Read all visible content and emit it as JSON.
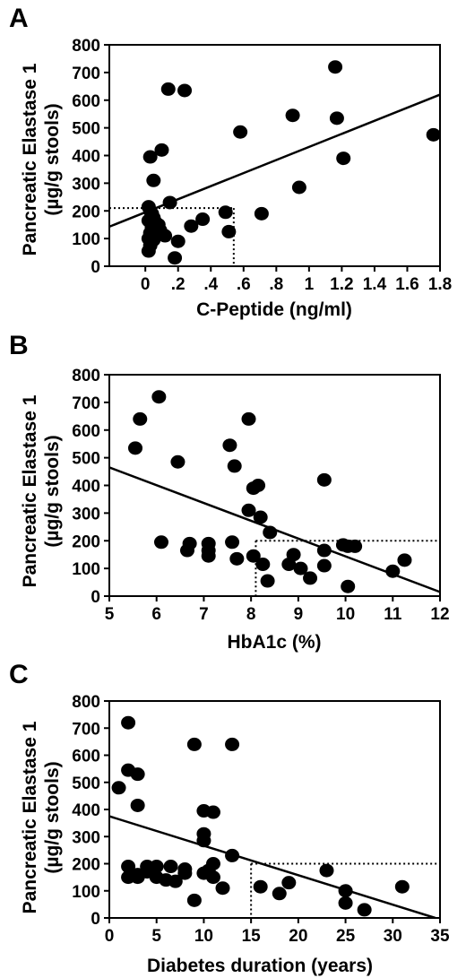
{
  "figure": {
    "y_axis_title_line1": "Pancreatic Elastase 1",
    "y_axis_title_line2": "(µg/g stools)"
  },
  "chart_data": [
    {
      "type": "scatter",
      "panel_label": "A",
      "xlabel": "C-Peptide (ng/ml)",
      "ylabel": "Pancreatic Elastase 1 (µg/g stools)",
      "xlim": [
        -0.22,
        1.8
      ],
      "ylim": [
        0,
        800
      ],
      "x_ticks": [
        0,
        0.2,
        0.4,
        0.6,
        0.8,
        1,
        1.2,
        1.4,
        1.6,
        1.8
      ],
      "x_tick_labels": [
        "0",
        ".2",
        ".4",
        ".6",
        ".8",
        "1",
        "1.2",
        "1.4",
        "1.6",
        "1.8"
      ],
      "y_ticks": [
        0,
        100,
        200,
        300,
        400,
        500,
        600,
        700,
        800
      ],
      "y_tick_labels": [
        "0",
        "100",
        "200",
        "300",
        "400",
        "500",
        "600",
        "700",
        "800"
      ],
      "points": [
        {
          "x": 0.03,
          "y": 395
        },
        {
          "x": 0.05,
          "y": 310
        },
        {
          "x": 0.1,
          "y": 420
        },
        {
          "x": 0.14,
          "y": 640
        },
        {
          "x": 0.24,
          "y": 635
        },
        {
          "x": 0.15,
          "y": 230
        },
        {
          "x": 0.02,
          "y": 215
        },
        {
          "x": 0.03,
          "y": 200
        },
        {
          "x": 0.04,
          "y": 190
        },
        {
          "x": 0.05,
          "y": 175
        },
        {
          "x": 0.02,
          "y": 165
        },
        {
          "x": 0.06,
          "y": 160
        },
        {
          "x": 0.08,
          "y": 150
        },
        {
          "x": 0.04,
          "y": 140
        },
        {
          "x": 0.09,
          "y": 130
        },
        {
          "x": 0.03,
          "y": 120
        },
        {
          "x": 0.07,
          "y": 115
        },
        {
          "x": 0.12,
          "y": 110
        },
        {
          "x": 0.02,
          "y": 100
        },
        {
          "x": 0.05,
          "y": 95
        },
        {
          "x": 0.03,
          "y": 75
        },
        {
          "x": 0.02,
          "y": 55
        },
        {
          "x": 0.2,
          "y": 90
        },
        {
          "x": 0.18,
          "y": 30
        },
        {
          "x": 0.28,
          "y": 145
        },
        {
          "x": 0.35,
          "y": 170
        },
        {
          "x": 0.49,
          "y": 195
        },
        {
          "x": 0.51,
          "y": 125
        },
        {
          "x": 0.58,
          "y": 485
        },
        {
          "x": 0.71,
          "y": 190
        },
        {
          "x": 0.9,
          "y": 545
        },
        {
          "x": 0.94,
          "y": 285
        },
        {
          "x": 1.16,
          "y": 720
        },
        {
          "x": 1.17,
          "y": 535
        },
        {
          "x": 1.21,
          "y": 390
        },
        {
          "x": 1.76,
          "y": 475
        }
      ],
      "regression_line": {
        "x": [
          -0.22,
          1.8
        ],
        "y": [
          143,
          620
        ]
      },
      "reference_lines": {
        "x": 0.54,
        "y": 210
      }
    },
    {
      "type": "scatter",
      "panel_label": "B",
      "xlabel": "HbA1c (%)",
      "ylabel": "Pancreatic Elastase 1 (µg/g stools)",
      "xlim": [
        5,
        12
      ],
      "ylim": [
        0,
        800
      ],
      "x_ticks": [
        5,
        6,
        7,
        8,
        9,
        10,
        11,
        12
      ],
      "x_tick_labels": [
        "5",
        "6",
        "7",
        "8",
        "9",
        "10",
        "11",
        "12"
      ],
      "y_ticks": [
        0,
        100,
        200,
        300,
        400,
        500,
        600,
        700,
        800
      ],
      "y_tick_labels": [
        "0",
        "100",
        "200",
        "300",
        "400",
        "500",
        "600",
        "700",
        "800"
      ],
      "points": [
        {
          "x": 5.55,
          "y": 535
        },
        {
          "x": 5.65,
          "y": 640
        },
        {
          "x": 6.05,
          "y": 720
        },
        {
          "x": 6.45,
          "y": 485
        },
        {
          "x": 6.1,
          "y": 195
        },
        {
          "x": 6.65,
          "y": 165
        },
        {
          "x": 6.7,
          "y": 190
        },
        {
          "x": 7.1,
          "y": 190
        },
        {
          "x": 7.1,
          "y": 165
        },
        {
          "x": 7.1,
          "y": 145
        },
        {
          "x": 7.55,
          "y": 545
        },
        {
          "x": 7.65,
          "y": 470
        },
        {
          "x": 7.6,
          "y": 195
        },
        {
          "x": 7.7,
          "y": 135
        },
        {
          "x": 7.95,
          "y": 640
        },
        {
          "x": 7.95,
          "y": 310
        },
        {
          "x": 8.05,
          "y": 390
        },
        {
          "x": 8.15,
          "y": 400
        },
        {
          "x": 8.2,
          "y": 285
        },
        {
          "x": 8.4,
          "y": 230
        },
        {
          "x": 8.05,
          "y": 145
        },
        {
          "x": 8.25,
          "y": 115
        },
        {
          "x": 8.35,
          "y": 55
        },
        {
          "x": 8.8,
          "y": 115
        },
        {
          "x": 8.9,
          "y": 150
        },
        {
          "x": 9.05,
          "y": 100
        },
        {
          "x": 9.25,
          "y": 65
        },
        {
          "x": 9.55,
          "y": 420
        },
        {
          "x": 9.55,
          "y": 165
        },
        {
          "x": 9.55,
          "y": 110
        },
        {
          "x": 9.95,
          "y": 185
        },
        {
          "x": 10.05,
          "y": 180
        },
        {
          "x": 10.2,
          "y": 180
        },
        {
          "x": 10.05,
          "y": 35
        },
        {
          "x": 11.0,
          "y": 90
        },
        {
          "x": 11.25,
          "y": 130
        }
      ],
      "regression_line": {
        "x": [
          5,
          12
        ],
        "y": [
          465,
          15
        ]
      },
      "reference_lines": {
        "x": 8.1,
        "y": 200
      }
    },
    {
      "type": "scatter",
      "panel_label": "C",
      "xlabel": "Diabetes duration (years)",
      "ylabel": "Pancreatic Elastase 1 (µg/g stools)",
      "xlim": [
        0,
        35
      ],
      "ylim": [
        0,
        800
      ],
      "x_ticks": [
        0,
        5,
        10,
        15,
        20,
        25,
        30,
        35
      ],
      "x_tick_labels": [
        "0",
        "5",
        "10",
        "15",
        "20",
        "25",
        "30",
        "35"
      ],
      "y_ticks": [
        0,
        100,
        200,
        300,
        400,
        500,
        600,
        700,
        800
      ],
      "y_tick_labels": [
        "0",
        "100",
        "200",
        "300",
        "400",
        "500",
        "600",
        "700",
        "800"
      ],
      "points": [
        {
          "x": 1,
          "y": 480
        },
        {
          "x": 2,
          "y": 720
        },
        {
          "x": 2,
          "y": 545
        },
        {
          "x": 3,
          "y": 530
        },
        {
          "x": 3,
          "y": 415
        },
        {
          "x": 2,
          "y": 190
        },
        {
          "x": 2,
          "y": 150
        },
        {
          "x": 3,
          "y": 160
        },
        {
          "x": 3,
          "y": 150
        },
        {
          "x": 4,
          "y": 190
        },
        {
          "x": 4,
          "y": 170
        },
        {
          "x": 5,
          "y": 190
        },
        {
          "x": 5,
          "y": 150
        },
        {
          "x": 6,
          "y": 140
        },
        {
          "x": 6.5,
          "y": 190
        },
        {
          "x": 7,
          "y": 135
        },
        {
          "x": 8,
          "y": 180
        },
        {
          "x": 8,
          "y": 165
        },
        {
          "x": 9,
          "y": 640
        },
        {
          "x": 9,
          "y": 65
        },
        {
          "x": 10,
          "y": 395
        },
        {
          "x": 10,
          "y": 310
        },
        {
          "x": 10,
          "y": 285
        },
        {
          "x": 10,
          "y": 165
        },
        {
          "x": 10.5,
          "y": 175
        },
        {
          "x": 11,
          "y": 390
        },
        {
          "x": 11,
          "y": 200
        },
        {
          "x": 11,
          "y": 150
        },
        {
          "x": 12,
          "y": 110
        },
        {
          "x": 13,
          "y": 640
        },
        {
          "x": 13,
          "y": 230
        },
        {
          "x": 16,
          "y": 115
        },
        {
          "x": 18,
          "y": 90
        },
        {
          "x": 19,
          "y": 130
        },
        {
          "x": 23,
          "y": 175
        },
        {
          "x": 25,
          "y": 100
        },
        {
          "x": 25,
          "y": 55
        },
        {
          "x": 27,
          "y": 30
        },
        {
          "x": 31,
          "y": 115
        }
      ],
      "regression_line": {
        "x": [
          0,
          34.5
        ],
        "y": [
          375,
          0
        ]
      },
      "reference_lines": {
        "x": 15,
        "y": 200
      }
    }
  ]
}
